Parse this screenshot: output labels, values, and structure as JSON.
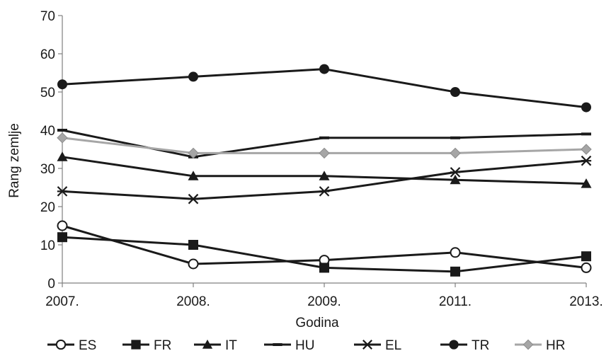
{
  "chart_data": {
    "type": "line",
    "xlabel": "Godina",
    "ylabel": "Rang zemlje",
    "categories": [
      "2007.",
      "2008.",
      "2009.",
      "2011.",
      "2013."
    ],
    "ylim": [
      0,
      70
    ],
    "yticks": [
      0,
      10,
      20,
      30,
      40,
      50,
      60,
      70
    ],
    "grid": false,
    "legend_position": "bottom",
    "series": [
      {
        "name": "ES",
        "values": [
          15,
          5,
          6,
          8,
          4
        ],
        "color": "#1a1a1a",
        "marker": "circle-open"
      },
      {
        "name": "FR",
        "values": [
          12,
          10,
          4,
          3,
          7
        ],
        "color": "#1a1a1a",
        "marker": "square"
      },
      {
        "name": "IT",
        "values": [
          33,
          28,
          28,
          27,
          26
        ],
        "color": "#1a1a1a",
        "marker": "triangle"
      },
      {
        "name": "HU",
        "values": [
          40,
          33,
          38,
          38,
          39
        ],
        "color": "#1a1a1a",
        "marker": "dash"
      },
      {
        "name": "EL",
        "values": [
          24,
          22,
          24,
          29,
          32
        ],
        "color": "#1a1a1a",
        "marker": "asterisk"
      },
      {
        "name": "TR",
        "values": [
          52,
          54,
          56,
          50,
          46
        ],
        "color": "#1a1a1a",
        "marker": "circle"
      },
      {
        "name": "HR",
        "values": [
          38,
          34,
          34,
          34,
          35
        ],
        "color": "#a6a6a6",
        "marker": "diamond"
      }
    ]
  }
}
